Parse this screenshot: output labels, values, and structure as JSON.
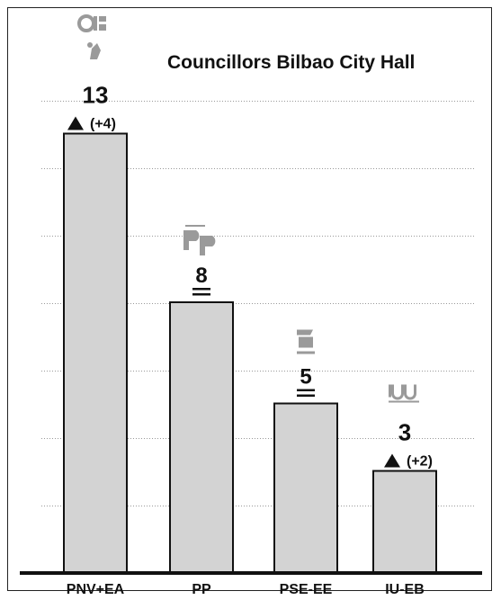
{
  "chart_data": {
    "type": "bar",
    "title": "Councillors Bilbao City Hall",
    "categories": [
      "PNV+EA",
      "PP",
      "PSE-EE",
      "IU-EB"
    ],
    "values": [
      13,
      8,
      5,
      3
    ],
    "value_labels": [
      "13",
      "8",
      "5",
      "3"
    ],
    "change_labels": [
      "(+4)",
      "",
      "",
      "(+2)"
    ],
    "change_markers": [
      "up",
      "equal",
      "equal",
      "up"
    ],
    "party_logos": [
      "pnv-ea-logo",
      "pp-logo",
      "pse-ee-logo",
      "iu-eb-logo"
    ],
    "ylim": [
      0,
      14
    ],
    "grid": true,
    "xlabel": "",
    "ylabel": "",
    "colors": {
      "bar": "#d3d3d3",
      "bar_edge": "#111111",
      "grid": "#999999",
      "text": "#111111",
      "logo": "#9a9a9a"
    }
  }
}
